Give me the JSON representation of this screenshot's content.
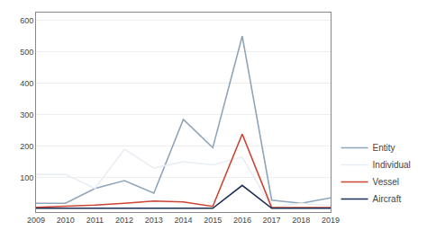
{
  "chart_data": {
    "type": "line",
    "x": [
      2009,
      2010,
      2011,
      2012,
      2013,
      2014,
      2015,
      2016,
      2017,
      2018,
      2019
    ],
    "series": [
      {
        "name": "Entity",
        "color": "#8fa5ba",
        "values": [
          18,
          18,
          65,
          90,
          50,
          285,
          195,
          550,
          28,
          18,
          35
        ]
      },
      {
        "name": "Individual",
        "color": "#e8eef4",
        "values": [
          110,
          110,
          65,
          190,
          130,
          150,
          140,
          165,
          5,
          18,
          10
        ]
      },
      {
        "name": "Vessel",
        "color": "#cc4433",
        "values": [
          5,
          8,
          12,
          18,
          25,
          22,
          8,
          238,
          4,
          4,
          4
        ]
      },
      {
        "name": "Aircraft",
        "color": "#1a2f55",
        "values": [
          2,
          2,
          2,
          2,
          2,
          2,
          2,
          75,
          2,
          2,
          2
        ]
      }
    ],
    "xlim": [
      2009,
      2019
    ],
    "xticks": [
      2009,
      2010,
      2011,
      2012,
      2013,
      2014,
      2015,
      2016,
      2017,
      2018,
      2019
    ],
    "ylim": [
      -10,
      625
    ],
    "yticks": [
      100,
      200,
      300,
      400,
      500,
      600
    ],
    "grid": true,
    "legend": "lower right"
  }
}
